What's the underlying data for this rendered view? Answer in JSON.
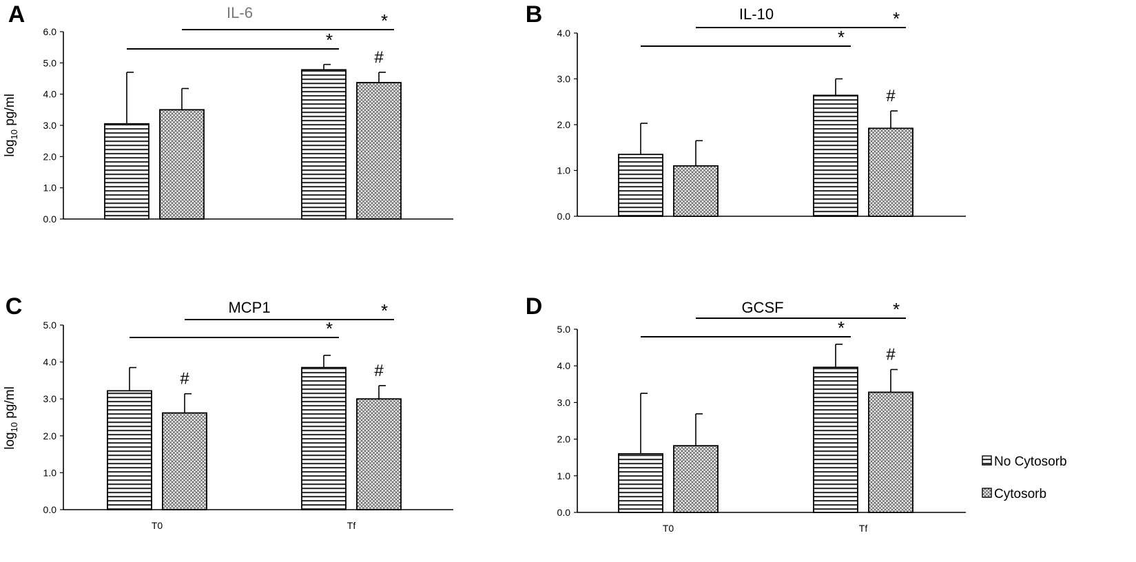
{
  "figure": {
    "legend": {
      "items": [
        {
          "label": "No Cytosorb",
          "pattern": "hstripe"
        },
        {
          "label": "Cytosorb",
          "pattern": "cross"
        }
      ]
    }
  },
  "chart_data": [
    {
      "type": "bar",
      "panel": "A",
      "title": "IL-6",
      "title_color": "#777777",
      "ylabel_base": "log",
      "ylabel_sub": "10",
      "ylabel_unit": " pg/ml",
      "ylim": [
        0,
        6
      ],
      "yticks": [
        "0.0",
        "1.0",
        "2.0",
        "3.0",
        "4.0",
        "5.0",
        "6.0"
      ],
      "categories": [
        "",
        ""
      ],
      "series": [
        {
          "name": "No Cytosorb",
          "values": [
            3.05,
            4.78
          ],
          "errors": [
            1.65,
            0.17
          ]
        },
        {
          "name": "Cytosorb",
          "values": [
            3.5,
            4.37
          ],
          "errors": [
            0.68,
            0.33
          ]
        }
      ],
      "hash_marks": [
        {
          "category": 1,
          "series": 1,
          "text": "#"
        }
      ],
      "significance": [
        {
          "from": [
            0,
            0
          ],
          "to": [
            1,
            0
          ],
          "text": "*"
        },
        {
          "from": [
            0,
            1
          ],
          "to": [
            1,
            1
          ],
          "text": "*"
        }
      ]
    },
    {
      "type": "bar",
      "panel": "B",
      "title": "IL-10",
      "title_color": "#000000",
      "ylabel_base": "",
      "ylabel_sub": "",
      "ylabel_unit": "",
      "ylim": [
        0,
        4
      ],
      "yticks": [
        "0.0",
        "1.0",
        "2.0",
        "3.0",
        "4.0"
      ],
      "categories": [
        "",
        ""
      ],
      "series": [
        {
          "name": "No Cytosorb",
          "values": [
            1.35,
            2.64
          ],
          "errors": [
            0.68,
            0.36
          ]
        },
        {
          "name": "Cytosorb",
          "values": [
            1.1,
            1.92
          ],
          "errors": [
            0.55,
            0.38
          ]
        }
      ],
      "hash_marks": [
        {
          "category": 1,
          "series": 1,
          "text": "#"
        }
      ],
      "significance": [
        {
          "from": [
            0,
            0
          ],
          "to": [
            1,
            0
          ],
          "text": "*"
        },
        {
          "from": [
            0,
            1
          ],
          "to": [
            1,
            1
          ],
          "text": "*"
        }
      ]
    },
    {
      "type": "bar",
      "panel": "C",
      "title": "MCP1",
      "title_color": "#000000",
      "ylabel_base": "log",
      "ylabel_sub": "10",
      "ylabel_unit": " pg/ml",
      "ylim": [
        0,
        5
      ],
      "yticks": [
        "0.0",
        "1.0",
        "2.0",
        "3.0",
        "4.0",
        "5.0"
      ],
      "categories": [
        "T0",
        "Tf"
      ],
      "series": [
        {
          "name": "No Cytosorb",
          "values": [
            3.22,
            3.85
          ],
          "errors": [
            0.63,
            0.33
          ]
        },
        {
          "name": "Cytosorb",
          "values": [
            2.62,
            3.0
          ],
          "errors": [
            0.52,
            0.36
          ]
        }
      ],
      "hash_marks": [
        {
          "category": 0,
          "series": 1,
          "text": "#"
        },
        {
          "category": 1,
          "series": 1,
          "text": "#"
        }
      ],
      "significance": [
        {
          "from": [
            0,
            0
          ],
          "to": [
            1,
            0
          ],
          "text": "*"
        },
        {
          "from": [
            0,
            1
          ],
          "to": [
            1,
            1
          ],
          "text": "*"
        }
      ]
    },
    {
      "type": "bar",
      "panel": "D",
      "title": "GCSF",
      "title_color": "#000000",
      "ylabel_base": "",
      "ylabel_sub": "",
      "ylabel_unit": "",
      "ylim": [
        0,
        5
      ],
      "yticks": [
        "0.0",
        "1.0",
        "2.0",
        "3.0",
        "4.0",
        "5.0"
      ],
      "categories": [
        "T0",
        "Tf"
      ],
      "series": [
        {
          "name": "No Cytosorb",
          "values": [
            1.6,
            3.96
          ],
          "errors": [
            1.65,
            0.63
          ]
        },
        {
          "name": "Cytosorb",
          "values": [
            1.82,
            3.28
          ],
          "errors": [
            0.87,
            0.62
          ]
        }
      ],
      "hash_marks": [
        {
          "category": 1,
          "series": 1,
          "text": "#"
        }
      ],
      "significance": [
        {
          "from": [
            0,
            0
          ],
          "to": [
            1,
            0
          ],
          "text": "*"
        },
        {
          "from": [
            0,
            1
          ],
          "to": [
            1,
            1
          ],
          "text": "*"
        }
      ]
    }
  ]
}
